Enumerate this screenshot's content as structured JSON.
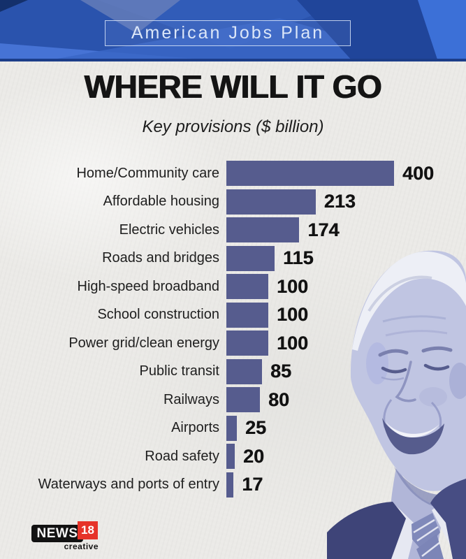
{
  "header": {
    "banner_label": "American Jobs Plan"
  },
  "title": "WHERE WILL IT GO",
  "subtitle": "Key provisions ($ billion)",
  "chart_data": {
    "type": "bar",
    "orientation": "horizontal",
    "title": "WHERE WILL IT GO",
    "subtitle": "Key provisions ($ billion)",
    "unit": "$ billion",
    "categories": [
      "Home/Community care",
      "Affordable housing",
      "Electric vehicles",
      "Roads and bridges",
      "High-speed broadband",
      "School construction",
      "Power grid/clean energy",
      "Public transit",
      "Railways",
      "Airports",
      "Road safety",
      "Waterways and ports of entry"
    ],
    "values": [
      400,
      213,
      174,
      115,
      100,
      100,
      100,
      85,
      80,
      25,
      20,
      17
    ],
    "xlim": [
      0,
      400
    ],
    "value_labels_shown": true,
    "grid": false,
    "legend": false,
    "bar_color": "#565c8e"
  },
  "images": {
    "portrait": "joe-biden-smiling-photo"
  },
  "footer": {
    "logo_news": "NEWS",
    "logo_num": "18",
    "logo_sub": "creative"
  },
  "colors": {
    "background": "#ebeae7",
    "bar": "#565c8e",
    "header_blue": "#2a53ad",
    "header_dark_blue": "#20459a",
    "header_light_blue": "#3c70d7",
    "banner_text": "#dbe6f8",
    "title_text": "#141414",
    "logo_red": "#e63329"
  }
}
